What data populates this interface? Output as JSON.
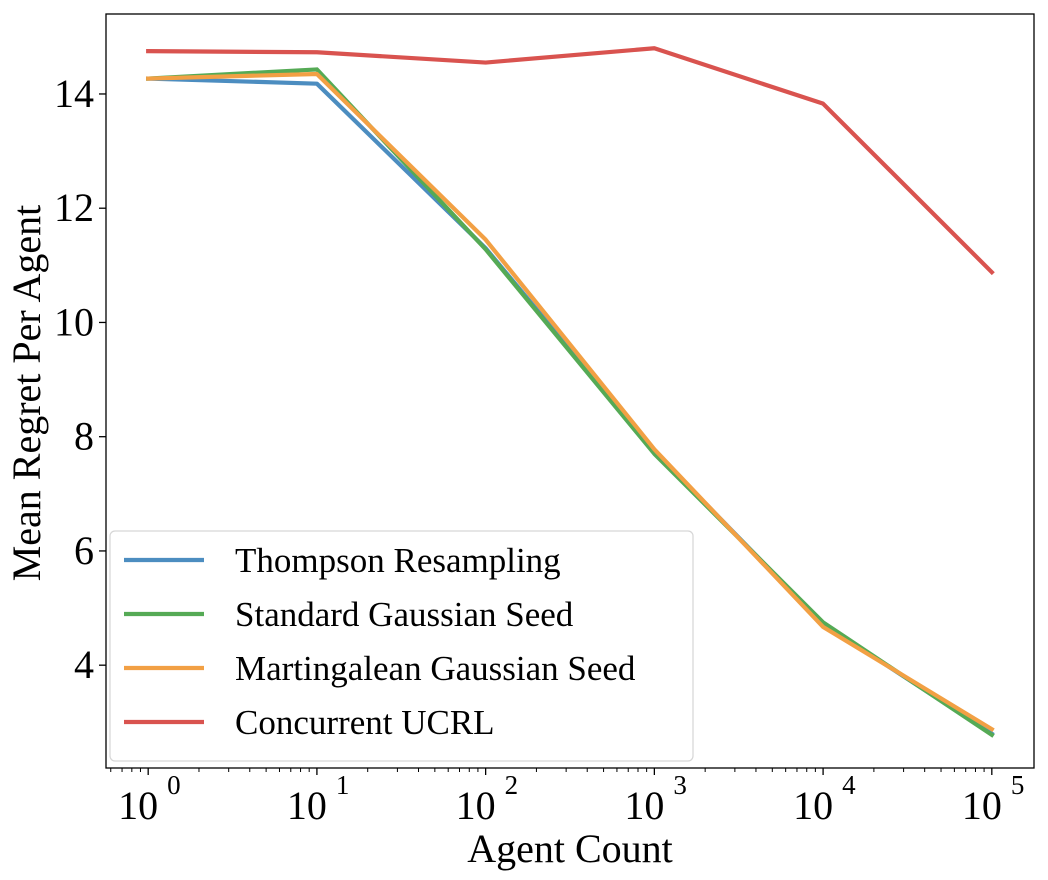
{
  "chart_data": {
    "type": "line",
    "title": "",
    "xlabel": "Agent Count",
    "ylabel": "Mean Regret Per Agent",
    "xscale": "log",
    "x": [
      1,
      10,
      100,
      1000,
      10000,
      100000
    ],
    "xlim_log10": [
      -0.25,
      5.25
    ],
    "ylim": [
      2.2,
      15.4
    ],
    "x_ticks": [
      {
        "base": "10",
        "exp": "0",
        "log10": 0
      },
      {
        "base": "10",
        "exp": "1",
        "log10": 1
      },
      {
        "base": "10",
        "exp": "2",
        "log10": 2
      },
      {
        "base": "10",
        "exp": "3",
        "log10": 3
      },
      {
        "base": "10",
        "exp": "4",
        "log10": 4
      },
      {
        "base": "10",
        "exp": "5",
        "log10": 5
      }
    ],
    "y_ticks": [
      {
        "label": "4",
        "value": 4
      },
      {
        "label": "6",
        "value": 6
      },
      {
        "label": "8",
        "value": 8
      },
      {
        "label": "10",
        "value": 10
      },
      {
        "label": "12",
        "value": 12
      },
      {
        "label": "14",
        "value": 14
      }
    ],
    "grid": false,
    "legend_position": "lower-left",
    "series": [
      {
        "name": "Thompson Resampling",
        "color": "#4c8dc0",
        "values": [
          14.27,
          14.18,
          11.3,
          7.75,
          4.72,
          2.8
        ]
      },
      {
        "name": "Standard Gaussian Seed",
        "color": "#55aa55",
        "values": [
          14.27,
          14.43,
          11.28,
          7.7,
          4.75,
          2.78
        ]
      },
      {
        "name": "Martingalean Gaussian Seed",
        "color": "#f2a044",
        "values": [
          14.27,
          14.35,
          11.45,
          7.78,
          4.67,
          2.88
        ]
      },
      {
        "name": "Concurrent UCRL",
        "color": "#d9534f",
        "values": [
          14.75,
          14.73,
          14.55,
          14.8,
          13.83,
          10.88
        ]
      }
    ]
  }
}
